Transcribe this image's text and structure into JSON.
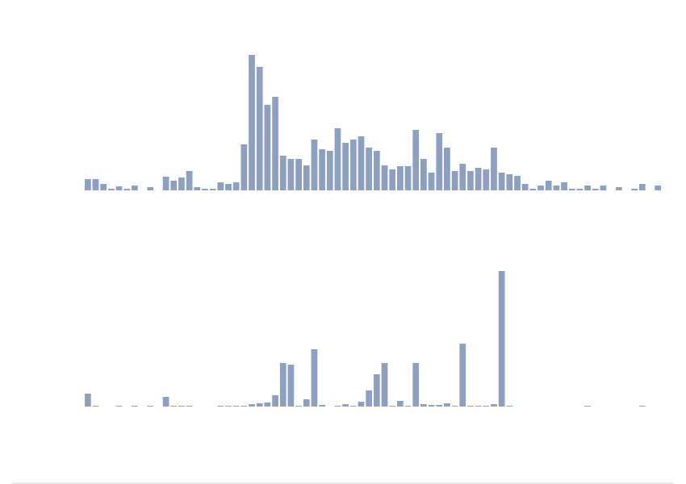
{
  "chart_data": [
    {
      "type": "bar",
      "color": "#8da0c0",
      "ylim": [
        0,
        168
      ],
      "values": [
        14,
        14,
        8,
        2,
        5,
        2,
        6,
        0,
        4,
        0,
        17,
        12,
        16,
        24,
        4,
        2,
        2,
        10,
        8,
        10,
        57,
        168,
        153,
        106,
        116,
        43,
        39,
        39,
        31,
        63,
        51,
        49,
        77,
        59,
        63,
        67,
        53,
        49,
        31,
        26,
        30,
        30,
        75,
        39,
        22,
        71,
        53,
        24,
        33,
        24,
        28,
        26,
        53,
        22,
        20,
        18,
        8,
        2,
        6,
        12,
        6,
        10,
        2,
        2,
        6,
        2,
        6,
        0,
        4,
        0,
        2,
        8,
        0,
        6
      ]
    },
    {
      "type": "bar",
      "color": "#8da0c0",
      "ylim": [
        0,
        168
      ],
      "values": [
        16,
        1,
        0,
        0,
        1,
        0,
        1,
        0,
        1,
        0,
        12,
        1,
        1,
        1,
        0,
        0,
        0,
        1,
        1,
        1,
        1,
        3,
        4,
        5,
        14,
        54,
        52,
        1,
        9,
        71,
        2,
        0,
        1,
        3,
        1,
        6,
        20,
        40,
        54,
        1,
        7,
        1,
        54,
        3,
        2,
        2,
        4,
        1,
        78,
        1,
        1,
        1,
        3,
        168,
        1,
        0,
        0,
        0,
        0,
        0,
        0,
        0,
        0,
        0,
        1,
        0,
        0,
        0,
        0,
        0,
        0,
        1,
        0,
        0
      ]
    }
  ]
}
